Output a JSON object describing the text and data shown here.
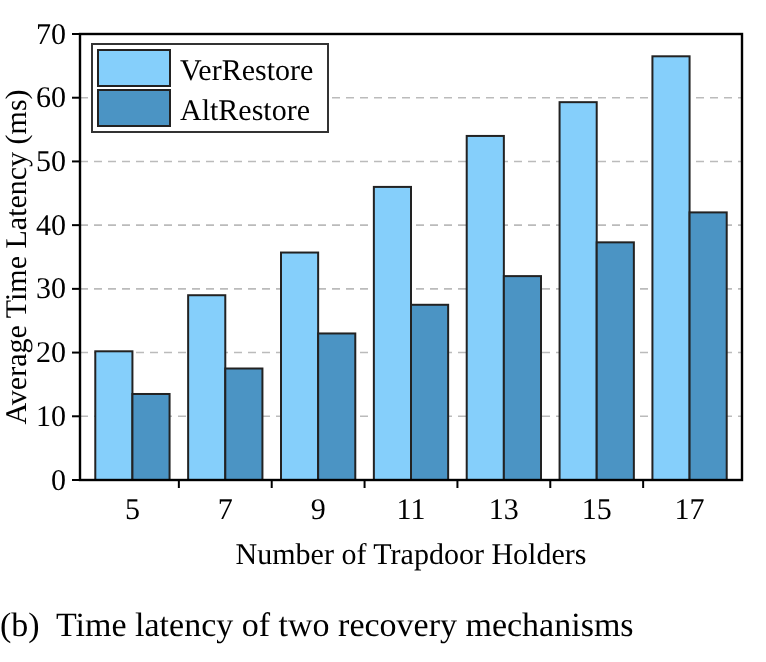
{
  "chart_data": {
    "type": "bar",
    "xlabel": "Number of Trapdoor Holders",
    "ylabel": "Average Time Latency (ms)",
    "categories": [
      "5",
      "7",
      "9",
      "11",
      "13",
      "15",
      "17"
    ],
    "series": [
      {
        "name": "VerRestore",
        "color": "#85cffb",
        "values": [
          20.2,
          29,
          35.7,
          46,
          54,
          59.3,
          66.5
        ]
      },
      {
        "name": "AltRestore",
        "color": "#4b94c4",
        "values": [
          13.5,
          17.5,
          23,
          27.5,
          32,
          37.3,
          42
        ]
      }
    ],
    "ylim": [
      0,
      70
    ],
    "yticks": [
      0,
      10,
      20,
      30,
      40,
      50,
      60,
      70
    ],
    "grid": "y",
    "legend": "top left",
    "annotations": [
      "(b)  Time latency of two recovery mechanisms"
    ]
  }
}
